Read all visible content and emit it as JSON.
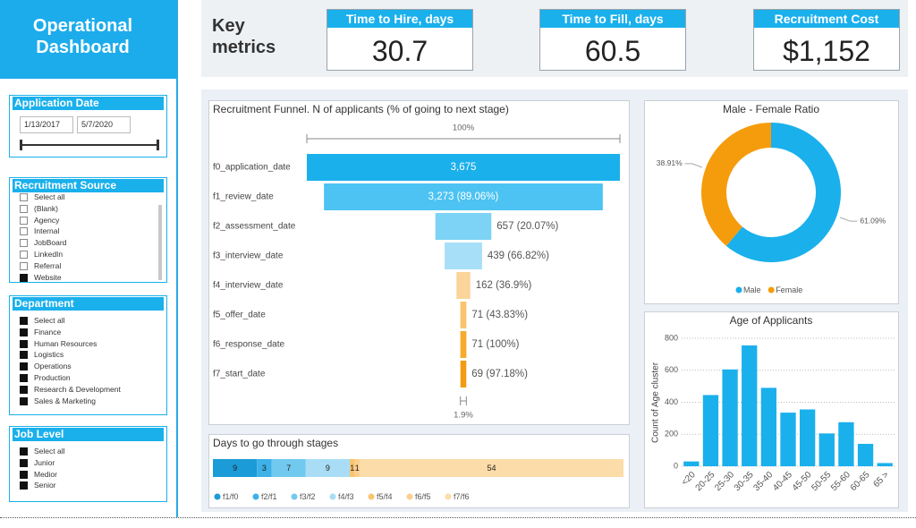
{
  "header": {
    "title": "Operational Dashboard",
    "key_metrics": "Key metrics"
  },
  "kpis": [
    {
      "label": "Time to Hire, days",
      "value": 30.7
    },
    {
      "label": "Time to Fill, days",
      "value": 60.5
    },
    {
      "label": "Recruitment Cost",
      "value": 1152,
      "value_label": "$1,152"
    }
  ],
  "filters": [
    {
      "title": "Application Date",
      "from": "1/13/2017",
      "to": "5/7/2020"
    },
    {
      "title": "Recruitment Source",
      "items": [
        "Select all",
        "(Blank)",
        "Agency",
        "Internal",
        "JobBoard",
        "LinkedIn",
        "Referral",
        "Website"
      ],
      "checked": [
        false,
        false,
        false,
        false,
        false,
        false,
        false,
        true
      ]
    },
    {
      "title": "Department",
      "items": [
        "Select all",
        "Finance",
        "Human Resources",
        "Logistics",
        "Operations",
        "Production",
        "Research & Development",
        "Sales & Marketing"
      ],
      "checked": [
        true,
        true,
        true,
        true,
        true,
        true,
        true,
        true
      ]
    },
    {
      "title": "Job Level",
      "items": [
        "Select all",
        "Junior",
        "Medior",
        "Senior"
      ],
      "checked": [
        true,
        true,
        true,
        true
      ]
    }
  ],
  "chart_data": [
    {
      "type": "funnel",
      "title": "Recruitment Funnel. N of applicants (% of going to next stage)",
      "categories": [
        "f0_application_date",
        "f1_review_date",
        "f2_assessment_date",
        "f3_interview_date",
        "f4_interview_date",
        "f5_offer_date",
        "f6_response_date",
        "f7_start_date"
      ],
      "values": [
        3675,
        3273,
        657,
        439,
        162,
        71,
        71,
        69
      ],
      "value_labels": [
        "3,675",
        "3,273 (89.06%)",
        "657 (20.07%)",
        "439 (66.82%)",
        "162 (36.9%)",
        "71 (43.83%)",
        "71 (100%)",
        "69 (97.18%)"
      ],
      "colors": [
        "#1ab0ec",
        "#4cc3f2",
        "#7dd3f5",
        "#a6dff7",
        "#fbd49a",
        "#f9c46e",
        "#f6ab2e",
        "#f39c12"
      ],
      "range_labels": [
        {
          "value": 100,
          "label": "100%"
        },
        {
          "value": 1.9,
          "label": "1.9%"
        }
      ]
    },
    {
      "type": "stacked_bar",
      "title": "Days to go through stages",
      "series": [
        {
          "name": "f1/f0",
          "color": "#1b9bd7",
          "values": [
            9
          ]
        },
        {
          "name": "f2/f1",
          "color": "#3db1e8",
          "values": [
            3
          ]
        },
        {
          "name": "f3/f2",
          "color": "#72c9f0",
          "values": [
            7
          ]
        },
        {
          "name": "f4/f3",
          "color": "#a8ddf5",
          "values": [
            9
          ]
        },
        {
          "name": "f5/f4",
          "color": "#f9c46e",
          "values": [
            1
          ]
        },
        {
          "name": "f6/f5",
          "color": "#fbd08f",
          "values": [
            1
          ]
        },
        {
          "name": "f7/f6",
          "color": "#fcdca8",
          "values": [
            54
          ]
        }
      ]
    },
    {
      "type": "donut",
      "title": "Male - Female Ratio",
      "categories": [
        "Male",
        "Female"
      ],
      "values": [
        61.09,
        38.91
      ],
      "value_labels": [
        "61.09%",
        "38.91%"
      ],
      "colors": [
        "#1ab0ec",
        "#f59c0c"
      ]
    },
    {
      "type": "bar",
      "title": "Age of Applicants",
      "y_label": "Count of Age cluster",
      "categories": [
        "<20",
        "20-25",
        "25-30",
        "30-35",
        "35-40",
        "40-45",
        "45-50",
        "50-55",
        "55-60",
        "60-65",
        "65 >"
      ],
      "values": [
        30,
        445,
        605,
        755,
        490,
        335,
        355,
        205,
        275,
        140,
        20
      ],
      "color": "#1ab0ec",
      "ylim": [
        0,
        850
      ],
      "yticks": [
        0,
        200,
        400,
        600,
        800
      ],
      "grid": true
    }
  ]
}
